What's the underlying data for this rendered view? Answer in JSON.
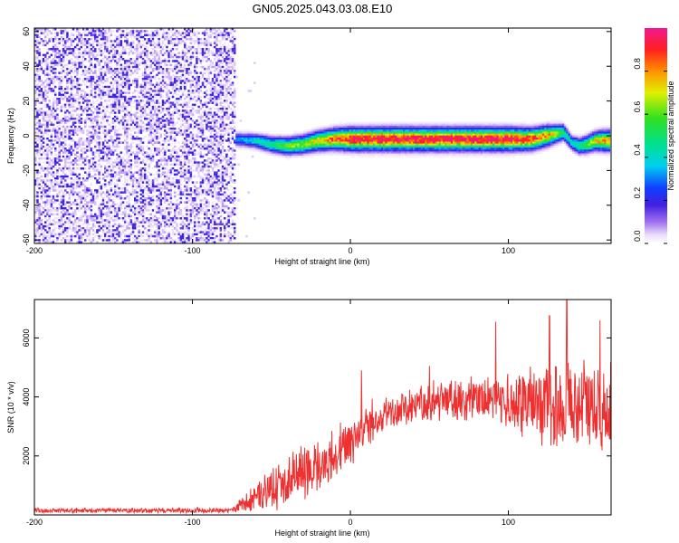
{
  "title": "GN05.2025.043.03.08.E10",
  "colors": {
    "line": "#ee3030",
    "axis": "#000000",
    "background": "#ffffff"
  },
  "chart_data": [
    {
      "type": "heatmap",
      "xlabel": "Height of straight line (km)",
      "ylabel": "Frequency (Hz)",
      "xlim": [
        -200,
        165
      ],
      "ylim": [
        -62,
        62
      ],
      "x_ticks": [
        "-200",
        "-100",
        "0",
        "100"
      ],
      "x_tick_values": [
        -200,
        -100,
        0,
        100
      ],
      "y_ticks": [
        "60",
        "40",
        "20",
        "0",
        "-20",
        "-40",
        "-60"
      ],
      "y_tick_values": [
        60,
        40,
        20,
        0,
        -20,
        -40,
        -60
      ],
      "colorbar": {
        "label": "Normalized spectral amplitude",
        "range": [
          0,
          1
        ],
        "ticks": [
          "0.0",
          "0.2",
          "0.4",
          "0.6",
          "0.8"
        ],
        "tick_values": [
          0.0,
          0.2,
          0.4,
          0.6,
          0.8
        ]
      },
      "noise_region_x": [
        -200,
        -73
      ],
      "noise_amplitude": 0.1,
      "signal_band": {
        "x": [
          -73,
          -60,
          -50,
          -40,
          -30,
          -20,
          -10,
          0,
          20,
          50,
          80,
          100,
          115,
          125,
          135,
          140,
          145,
          150,
          155,
          160,
          165
        ],
        "frequency": [
          -2,
          -3,
          -5,
          -6,
          -5,
          -3,
          -2,
          -2,
          -2,
          -2,
          -2,
          -2,
          -2,
          0,
          2,
          -4,
          -6,
          -5,
          -3,
          -3,
          -3
        ],
        "amplitude": [
          0.3,
          0.4,
          0.5,
          0.6,
          0.65,
          0.75,
          0.85,
          0.95,
          0.97,
          0.97,
          0.97,
          0.97,
          0.9,
          0.8,
          0.5,
          0.4,
          0.5,
          0.6,
          0.7,
          0.8,
          0.8
        ]
      }
    },
    {
      "type": "line",
      "xlabel": "Height of straight line (km)",
      "ylabel": "SNR (10 * v/v)",
      "xlim": [
        -200,
        165
      ],
      "ylim": [
        0,
        7300
      ],
      "x_ticks": [
        "-200",
        "-100",
        "0",
        "100"
      ],
      "x_tick_values": [
        -200,
        -100,
        0,
        100
      ],
      "y_ticks": [
        "2000",
        "4000",
        "6000"
      ],
      "y_tick_values": [
        2000,
        4000,
        6000
      ],
      "envelope": {
        "x": [
          -200,
          -150,
          -100,
          -75,
          -70,
          -60,
          -50,
          -40,
          -30,
          -20,
          -10,
          0,
          10,
          20,
          40,
          60,
          80,
          100,
          110,
          120,
          130,
          140,
          150,
          160,
          165
        ],
        "mean": [
          150,
          150,
          150,
          150,
          300,
          600,
          900,
          1200,
          1500,
          1700,
          2000,
          2500,
          3000,
          3400,
          3700,
          3900,
          3900,
          3900,
          3800,
          3700,
          3700,
          3800,
          3600,
          3500,
          3600
        ],
        "spread": [
          80,
          80,
          80,
          80,
          250,
          500,
          700,
          800,
          900,
          900,
          900,
          800,
          700,
          600,
          600,
          700,
          700,
          900,
          1100,
          1300,
          1500,
          1600,
          1600,
          1500,
          1400
        ]
      },
      "peaks": [
        {
          "x": 137,
          "y": 7300
        },
        {
          "x": 126,
          "y": 6750
        },
        {
          "x": 92,
          "y": 6550
        },
        {
          "x": 158,
          "y": 6600
        },
        {
          "x": 7,
          "y": 4900
        },
        {
          "x": 50,
          "y": 5050
        }
      ]
    }
  ]
}
